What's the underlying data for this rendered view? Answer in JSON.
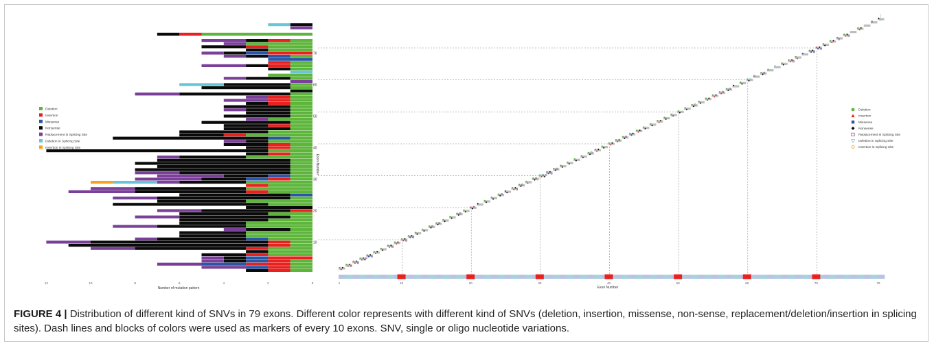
{
  "caption": {
    "label": "FIGURE 4 |",
    "text": "Distribution of different kind of SNVs in 79 exons. Different color represents with different kind of SNVs (deletion, insertion, missense, non-sense, replacement/deletion/insertion in splicing sites). Dash lines and blocks of colors were used as markers of every 10 exons. SNV, single or oligo nucleotide variations."
  },
  "colors": {
    "deletion": "#5db53b",
    "insertion": "#e8211f",
    "missense": "#2a56a8",
    "nonsense": "#0a0a0a",
    "replacement_splicing": "#7a3f98",
    "deletion_splicing": "#66c6d6",
    "insertion_splicing": "#f5a21d"
  },
  "chart_data": [
    {
      "type": "bar",
      "orientation": "horizontal-stacked",
      "xlabel": "Number of mutation pattern",
      "ylabel": "Exon Number",
      "xlim": [
        0,
        12
      ],
      "x_reversed": true,
      "xticks": [
        "0",
        "2",
        "4",
        "6",
        "8",
        "10",
        "12"
      ],
      "ylim": [
        0,
        79
      ],
      "yticks": [
        "10",
        "20",
        "30",
        "40",
        "50",
        "60",
        "70"
      ],
      "legend_position": "left",
      "legend": [
        {
          "label": "Deletion",
          "color_key": "deletion"
        },
        {
          "label": "Insertion",
          "color_key": "insertion"
        },
        {
          "label": "Missense",
          "color_key": "missense"
        },
        {
          "label": "Nonsense",
          "color_key": "nonsense"
        },
        {
          "label": "Replacement in Splicing Site",
          "color_key": "replacement_splicing"
        },
        {
          "label": "Deletion in Splicing Site",
          "color_key": "deletion_splicing"
        },
        {
          "label": "Insertion in Splicing Site",
          "color_key": "insertion_splicing"
        }
      ],
      "categories": [
        1,
        2,
        3,
        4,
        5,
        6,
        7,
        8,
        9,
        10,
        11,
        12,
        13,
        14,
        15,
        16,
        17,
        18,
        19,
        20,
        21,
        22,
        23,
        24,
        25,
        26,
        27,
        28,
        29,
        30,
        31,
        32,
        33,
        34,
        35,
        36,
        37,
        38,
        39,
        40,
        41,
        42,
        43,
        44,
        45,
        46,
        47,
        48,
        49,
        50,
        51,
        52,
        53,
        54,
        55,
        56,
        57,
        58,
        59,
        60,
        61,
        62,
        63,
        64,
        65,
        66,
        67,
        68,
        69,
        70,
        71,
        72,
        73,
        74,
        75,
        76,
        77,
        78,
        79
      ],
      "series_order": [
        "deletion",
        "insertion",
        "missense",
        "nonsense",
        "replacement_splicing",
        "deletion_splicing",
        "insertion_splicing"
      ],
      "rows": [
        [
          1,
          1,
          0,
          1,
          0,
          0,
          0
        ],
        [
          1,
          1,
          1,
          0,
          2,
          0,
          0
        ],
        [
          1,
          2,
          2,
          0,
          2,
          0,
          0
        ],
        [
          1,
          1,
          1,
          1,
          1,
          0,
          0
        ],
        [
          0,
          2,
          1,
          1,
          1,
          0,
          0
        ],
        [
          2,
          1,
          0,
          2,
          0,
          0,
          0
        ],
        [
          2,
          0,
          0,
          1,
          0,
          0,
          0
        ],
        [
          2,
          1,
          0,
          5,
          2,
          0,
          0
        ],
        [
          1,
          1,
          0,
          9,
          0,
          0,
          0
        ],
        [
          1,
          1,
          0,
          8,
          2,
          0,
          0
        ],
        [
          2,
          0,
          1,
          4,
          1,
          0,
          0
        ],
        [
          3,
          0,
          0,
          3,
          0,
          0,
          0
        ],
        [
          3,
          0,
          0,
          3,
          0,
          0,
          0
        ],
        [
          1,
          0,
          0,
          2,
          1,
          0,
          0
        ],
        [
          3,
          0,
          0,
          4,
          2,
          0,
          0
        ],
        [
          3,
          0,
          0,
          3,
          0,
          0,
          0
        ],
        [
          2,
          0,
          0,
          4,
          0,
          0,
          0
        ],
        [
          1,
          0,
          0,
          5,
          2,
          0,
          0
        ],
        [
          2,
          0,
          0,
          4,
          0,
          0,
          0
        ],
        [
          0,
          1,
          0,
          4,
          2,
          0,
          0
        ],
        [
          0,
          0,
          0,
          3,
          0,
          0,
          0
        ],
        [
          2,
          0,
          0,
          7,
          0,
          0,
          0
        ],
        [
          3,
          0,
          0,
          4,
          0,
          0,
          0
        ],
        [
          1,
          0,
          0,
          6,
          2,
          0,
          0
        ],
        [
          0,
          0,
          1,
          5,
          0,
          0,
          0
        ],
        [
          2,
          1,
          0,
          5,
          3,
          0,
          0
        ],
        [
          3,
          0,
          0,
          5,
          2,
          0,
          0
        ],
        [
          2,
          1,
          0,
          0,
          0,
          0,
          0
        ],
        [
          3,
          0,
          0,
          3,
          1,
          2,
          1
        ],
        [
          1,
          1,
          1,
          2,
          3,
          0,
          0
        ],
        [
          1,
          0,
          1,
          2,
          3,
          0,
          0
        ],
        [
          1,
          0,
          0,
          5,
          2,
          0,
          0
        ],
        [
          1,
          0,
          0,
          7,
          0,
          0,
          0
        ],
        [
          1,
          0,
          0,
          6,
          0,
          0,
          0
        ],
        [
          1,
          0,
          0,
          7,
          0,
          0,
          0
        ],
        [
          1,
          0,
          0,
          6,
          0,
          0,
          0
        ],
        [
          3,
          0,
          0,
          3,
          1,
          0,
          0
        ],
        [
          1,
          1,
          0,
          1,
          0,
          0,
          0
        ],
        [
          2,
          0,
          0,
          10,
          0,
          0,
          0
        ],
        [
          1,
          1,
          0,
          1,
          0,
          0,
          0
        ],
        [
          1,
          1,
          0,
          2,
          0,
          0,
          0
        ],
        [
          2,
          0,
          0,
          1,
          1,
          0,
          0
        ],
        [
          1,
          0,
          1,
          7,
          0,
          0,
          0
        ],
        [
          3,
          1,
          0,
          2,
          0,
          0,
          0
        ],
        [
          2,
          0,
          0,
          4,
          0,
          0,
          0
        ],
        [
          1,
          0,
          0,
          3,
          0,
          0,
          0
        ],
        [
          1,
          1,
          0,
          2,
          0,
          0,
          0
        ],
        [
          1,
          0,
          0,
          4,
          0,
          0,
          0
        ],
        [
          2,
          0,
          0,
          0,
          1,
          0,
          0
        ],
        [
          1,
          0,
          0,
          3,
          0,
          0,
          0
        ],
        [
          1,
          0,
          0,
          2,
          0,
          0,
          0
        ],
        [
          1,
          0,
          0,
          2,
          1,
          0,
          0
        ],
        [
          1,
          0,
          0,
          3,
          0,
          0,
          0
        ],
        [
          1,
          1,
          0,
          1,
          0,
          0,
          0
        ],
        [
          1,
          1,
          0,
          0,
          2,
          0,
          0
        ],
        [
          1,
          1,
          0,
          0,
          1,
          0,
          0
        ],
        [
          1,
          0,
          0,
          5,
          2,
          0,
          0
        ],
        [
          0,
          0,
          0,
          1,
          0,
          0,
          0
        ],
        [
          1,
          0,
          0,
          4,
          0,
          0,
          0
        ],
        [
          1,
          0,
          0,
          3,
          0,
          2,
          0
        ],
        [
          0,
          0,
          0,
          0,
          1,
          0,
          0
        ],
        [
          1,
          0,
          0,
          2,
          1,
          0,
          0
        ],
        [
          2,
          0,
          0,
          0,
          0,
          0,
          0
        ],
        [
          0,
          0,
          0,
          0,
          0,
          1,
          0
        ],
        [
          1,
          0,
          0,
          1,
          0,
          0,
          0
        ],
        [
          1,
          1,
          0,
          1,
          2,
          0,
          0
        ],
        [
          1,
          1,
          0,
          0,
          0,
          0,
          0
        ],
        [
          0,
          0,
          2,
          0,
          0,
          0,
          0
        ],
        [
          1,
          0,
          1,
          1,
          1,
          0,
          0
        ],
        [
          0,
          2,
          1,
          1,
          1,
          0,
          0
        ],
        [
          2,
          0,
          0,
          1,
          0,
          0,
          0
        ],
        [
          2,
          1,
          0,
          2,
          0,
          0,
          0
        ],
        [
          3,
          0,
          0,
          0,
          1,
          0,
          0
        ],
        [
          1,
          1,
          0,
          1,
          2,
          0,
          0
        ],
        [
          0,
          0,
          0,
          0,
          0,
          0,
          0
        ],
        [
          5,
          1,
          0,
          1,
          0,
          0,
          0
        ],
        [
          0,
          0,
          0,
          0,
          0,
          0,
          0
        ],
        [
          0,
          0,
          0,
          0,
          1,
          0,
          0
        ],
        [
          0,
          0,
          0,
          1,
          0,
          1,
          0
        ]
      ]
    },
    {
      "type": "scatter",
      "xlabel": "Exon Number",
      "xlim": [
        1,
        79
      ],
      "xticks": [
        "1",
        "10",
        "20",
        "30",
        "40",
        "50",
        "60",
        "70",
        "79"
      ],
      "yticks": [
        "10",
        "20",
        "30",
        "40",
        "50",
        "60",
        "70"
      ],
      "reference_exons": [
        10,
        20,
        30,
        40,
        50,
        60,
        70
      ],
      "legend_position": "right",
      "legend": [
        {
          "label": "Deletion",
          "marker": "circle",
          "color_key": "deletion"
        },
        {
          "label": "Insertion",
          "marker": "triangle-up",
          "color_key": "insertion"
        },
        {
          "label": "Missense",
          "marker": "square",
          "color_key": "missense"
        },
        {
          "label": "Nonsense",
          "marker": "diamond",
          "color_key": "nonsense"
        },
        {
          "label": "Replacement in Splicing Site",
          "marker": "square-open",
          "color_key": "replacement_splicing"
        },
        {
          "label": "Deletion in Splicing Site",
          "marker": "triangle-down-open",
          "color_key": "deletion_splicing"
        },
        {
          "label": "Insertion in Splicing Site",
          "marker": "diamond-open",
          "color_key": "insertion_splicing"
        }
      ],
      "exon_strip": {
        "band_colors": [
          "#a9d2df",
          "#b9c3e4"
        ],
        "marker_color": "#e8211f",
        "marker_exons": [
          10,
          20,
          30,
          40,
          50,
          60,
          70
        ]
      }
    }
  ]
}
